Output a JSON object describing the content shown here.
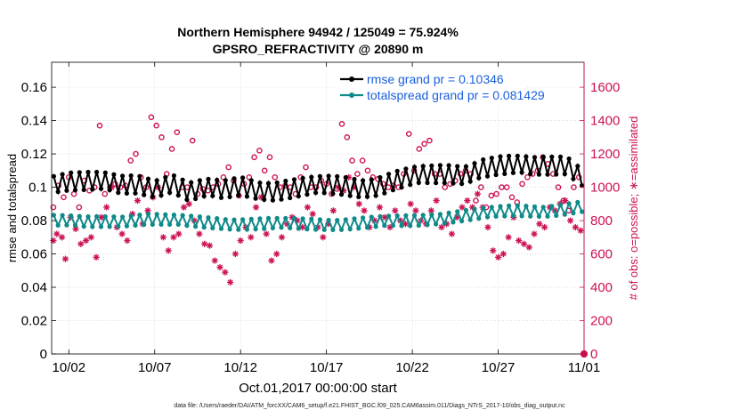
{
  "chart_data": {
    "type": "line",
    "title": "Northern Hemisphere 94942 / 125049 = 75.924%",
    "subtitle": "GPSRO_REFRACTIVITY @ 20890 m",
    "xlabel": "Oct.01,2017 00:00:00 start",
    "ylabel": "rmse and totalspread",
    "ylabel_right": "# of obs: o=possible; ∗=assimilated",
    "xlim": [
      0,
      31
    ],
    "ylim": [
      0,
      0.175
    ],
    "ylim_right": [
      0,
      1750
    ],
    "x_ticks": [
      1,
      6,
      11,
      16,
      21,
      26,
      31
    ],
    "x_tick_labels": [
      "10/02",
      "10/07",
      "10/12",
      "10/17",
      "10/22",
      "10/27",
      "11/01"
    ],
    "y_ticks": [
      0,
      0.02,
      0.04,
      0.06,
      0.08,
      0.1,
      0.12,
      0.14,
      0.16
    ],
    "y_tick_labels": [
      "0",
      "0.02",
      "0.04",
      "0.06",
      "0.08",
      "0.1",
      "0.12",
      "0.14",
      "0.16"
    ],
    "y_right_ticks": [
      0,
      200,
      400,
      600,
      800,
      1000,
      1200,
      1400,
      1600
    ],
    "y_right_tick_labels": [
      "0",
      "200",
      "400",
      "600",
      "800",
      "1000",
      "1200",
      "1400",
      "1600"
    ],
    "grid": true,
    "legend_position": "top-right",
    "series": [
      {
        "name": "rmse grand pr = 0.10346",
        "color": "#000000",
        "marker": "filled-circle",
        "axis": "left",
        "y_anchors": [
          [
            0.125,
            0.103
          ],
          [
            1,
            0.104
          ],
          [
            3,
            0.103
          ],
          [
            4,
            0.101
          ],
          [
            5,
            0.102
          ],
          [
            6,
            0.1
          ],
          [
            7,
            0.103
          ],
          [
            8,
            0.097
          ],
          [
            9,
            0.099
          ],
          [
            10,
            0.098
          ],
          [
            11,
            0.101
          ],
          [
            12,
            0.099
          ],
          [
            13,
            0.098
          ],
          [
            14,
            0.099
          ],
          [
            15,
            0.1
          ],
          [
            16,
            0.101
          ],
          [
            17,
            0.101
          ],
          [
            18,
            0.1
          ],
          [
            19,
            0.101
          ],
          [
            20,
            0.104
          ],
          [
            21,
            0.106
          ],
          [
            22,
            0.107
          ],
          [
            23,
            0.108
          ],
          [
            24,
            0.108
          ],
          [
            25,
            0.112
          ],
          [
            26,
            0.113
          ],
          [
            27,
            0.113
          ],
          [
            28,
            0.112
          ],
          [
            29,
            0.113
          ],
          [
            30,
            0.114
          ],
          [
            30.875,
            0.107
          ]
        ],
        "wiggle_amplitude": 0.006,
        "samples_per_day": 4
      },
      {
        "name": "totalspread grand pr = 0.081429",
        "color": "#0f8a8a",
        "marker": "filled-circle",
        "axis": "left",
        "y_anchors": [
          [
            0.125,
            0.08
          ],
          [
            2,
            0.079
          ],
          [
            4,
            0.08
          ],
          [
            5.5,
            0.081
          ],
          [
            7,
            0.08
          ],
          [
            9,
            0.079
          ],
          [
            11,
            0.078
          ],
          [
            13,
            0.078
          ],
          [
            15,
            0.078
          ],
          [
            17,
            0.078
          ],
          [
            19,
            0.079
          ],
          [
            21,
            0.08
          ],
          [
            23,
            0.082
          ],
          [
            25,
            0.084
          ],
          [
            27,
            0.086
          ],
          [
            29,
            0.086
          ],
          [
            30.875,
            0.088
          ]
        ],
        "wiggle_amplitude": 0.0035,
        "samples_per_day": 4
      },
      {
        "name": "obs possible",
        "color": "#cc1155",
        "marker": "open-circle",
        "axis": "right",
        "points": [
          [
            0.1,
            880
          ],
          [
            0.4,
            1010
          ],
          [
            0.7,
            940
          ],
          [
            1.0,
            1060
          ],
          [
            1.3,
            960
          ],
          [
            1.6,
            880
          ],
          [
            1.9,
            1040
          ],
          [
            2.2,
            980
          ],
          [
            2.5,
            1000
          ],
          [
            2.8,
            1370
          ],
          [
            3.1,
            960
          ],
          [
            3.4,
            1000
          ],
          [
            3.7,
            1020
          ],
          [
            4.0,
            1000
          ],
          [
            4.3,
            1010
          ],
          [
            4.6,
            1160
          ],
          [
            4.9,
            1200
          ],
          [
            5.2,
            1060
          ],
          [
            5.5,
            1000
          ],
          [
            5.8,
            1420
          ],
          [
            6.1,
            1370
          ],
          [
            6.4,
            1300
          ],
          [
            6.7,
            1080
          ],
          [
            7.0,
            1230
          ],
          [
            7.3,
            1330
          ],
          [
            7.6,
            1000
          ],
          [
            7.9,
            1000
          ],
          [
            8.2,
            1280
          ],
          [
            8.5,
            960
          ],
          [
            8.8,
            990
          ],
          [
            9.1,
            980
          ],
          [
            9.4,
            1000
          ],
          [
            9.7,
            1020
          ],
          [
            10.0,
            1060
          ],
          [
            10.3,
            1120
          ],
          [
            10.6,
            1040
          ],
          [
            10.9,
            950
          ],
          [
            11.2,
            1020
          ],
          [
            11.5,
            1060
          ],
          [
            11.8,
            1180
          ],
          [
            12.1,
            1220
          ],
          [
            12.4,
            1100
          ],
          [
            12.7,
            1180
          ],
          [
            13.0,
            1060
          ],
          [
            13.3,
            1000
          ],
          [
            13.6,
            1010
          ],
          [
            13.9,
            1000
          ],
          [
            14.2,
            960
          ],
          [
            14.5,
            1060
          ],
          [
            14.8,
            1120
          ],
          [
            15.1,
            1000
          ],
          [
            15.4,
            1000
          ],
          [
            15.7,
            1040
          ],
          [
            16.0,
            1020
          ],
          [
            16.3,
            960
          ],
          [
            16.6,
            990
          ],
          [
            16.9,
            1380
          ],
          [
            17.2,
            1300
          ],
          [
            17.5,
            1160
          ],
          [
            17.8,
            1080
          ],
          [
            18.1,
            1160
          ],
          [
            18.4,
            1100
          ],
          [
            18.7,
            1060
          ],
          [
            19.0,
            1050
          ],
          [
            19.3,
            1020
          ],
          [
            19.6,
            1000
          ],
          [
            19.9,
            1010
          ],
          [
            20.2,
            1000
          ],
          [
            20.5,
            1080
          ],
          [
            20.8,
            1320
          ],
          [
            21.1,
            1100
          ],
          [
            21.4,
            1230
          ],
          [
            21.7,
            1260
          ],
          [
            22.0,
            1280
          ],
          [
            22.3,
            1080
          ],
          [
            22.6,
            1080
          ],
          [
            22.9,
            1000
          ],
          [
            23.2,
            1020
          ],
          [
            23.5,
            1040
          ],
          [
            23.8,
            1080
          ],
          [
            24.1,
            1100
          ],
          [
            24.4,
            1080
          ],
          [
            24.7,
            920
          ],
          [
            25.0,
            1000
          ],
          [
            25.3,
            880
          ],
          [
            25.6,
            950
          ],
          [
            25.9,
            960
          ],
          [
            26.2,
            1000
          ],
          [
            26.5,
            1000
          ],
          [
            26.8,
            940
          ],
          [
            27.1,
            910
          ],
          [
            27.4,
            1020
          ],
          [
            27.7,
            1060
          ],
          [
            28.0,
            1080
          ],
          [
            28.3,
            1100
          ],
          [
            28.6,
            1180
          ],
          [
            28.9,
            1140
          ],
          [
            29.2,
            1080
          ],
          [
            29.5,
            1000
          ],
          [
            29.8,
            920
          ],
          [
            30.1,
            860
          ],
          [
            30.4,
            1000
          ],
          [
            30.7,
            1060
          ],
          [
            31.0,
            0
          ]
        ]
      },
      {
        "name": "obs assimilated",
        "color": "#cc1155",
        "marker": "asterisk",
        "axis": "right",
        "points": [
          [
            0.1,
            680
          ],
          [
            0.3,
            720
          ],
          [
            0.6,
            700
          ],
          [
            0.8,
            570
          ],
          [
            1.1,
            820
          ],
          [
            1.4,
            750
          ],
          [
            1.7,
            660
          ],
          [
            2.0,
            680
          ],
          [
            2.3,
            700
          ],
          [
            2.6,
            580
          ],
          [
            2.9,
            820
          ],
          [
            3.2,
            880
          ],
          [
            3.5,
            1000
          ],
          [
            3.8,
            760
          ],
          [
            4.1,
            720
          ],
          [
            4.4,
            680
          ],
          [
            4.7,
            840
          ],
          [
            5.0,
            920
          ],
          [
            5.3,
            780
          ],
          [
            5.6,
            860
          ],
          [
            5.9,
            940
          ],
          [
            6.2,
            1000
          ],
          [
            6.5,
            700
          ],
          [
            6.8,
            620
          ],
          [
            7.1,
            700
          ],
          [
            7.4,
            720
          ],
          [
            7.7,
            880
          ],
          [
            8.0,
            900
          ],
          [
            8.3,
            800
          ],
          [
            8.6,
            720
          ],
          [
            8.9,
            660
          ],
          [
            9.2,
            650
          ],
          [
            9.5,
            560
          ],
          [
            9.8,
            520
          ],
          [
            10.1,
            490
          ],
          [
            10.4,
            430
          ],
          [
            10.7,
            600
          ],
          [
            11.0,
            680
          ],
          [
            11.3,
            760
          ],
          [
            11.6,
            700
          ],
          [
            11.9,
            880
          ],
          [
            12.2,
            940
          ],
          [
            12.5,
            720
          ],
          [
            12.8,
            560
          ],
          [
            13.1,
            600
          ],
          [
            13.4,
            700
          ],
          [
            13.7,
            780
          ],
          [
            14.0,
            820
          ],
          [
            14.3,
            800
          ],
          [
            14.6,
            760
          ],
          [
            14.9,
            880
          ],
          [
            15.2,
            840
          ],
          [
            15.5,
            760
          ],
          [
            15.8,
            700
          ],
          [
            16.1,
            780
          ],
          [
            16.4,
            860
          ],
          [
            16.7,
            1000
          ],
          [
            17.0,
            980
          ],
          [
            17.3,
            1060
          ],
          [
            17.6,
            1000
          ],
          [
            17.9,
            900
          ],
          [
            18.2,
            860
          ],
          [
            18.5,
            760
          ],
          [
            18.8,
            800
          ],
          [
            19.1,
            880
          ],
          [
            19.4,
            820
          ],
          [
            19.7,
            760
          ],
          [
            20.0,
            860
          ],
          [
            20.3,
            800
          ],
          [
            20.6,
            780
          ],
          [
            20.9,
            900
          ],
          [
            21.2,
            860
          ],
          [
            21.5,
            800
          ],
          [
            21.8,
            780
          ],
          [
            22.1,
            860
          ],
          [
            22.4,
            920
          ],
          [
            22.7,
            760
          ],
          [
            23.0,
            780
          ],
          [
            23.3,
            720
          ],
          [
            23.6,
            820
          ],
          [
            23.9,
            880
          ],
          [
            24.2,
            920
          ],
          [
            24.5,
            880
          ],
          [
            24.8,
            960
          ],
          [
            25.1,
            880
          ],
          [
            25.4,
            760
          ],
          [
            25.7,
            620
          ],
          [
            26.0,
            580
          ],
          [
            26.3,
            600
          ],
          [
            26.6,
            700
          ],
          [
            26.9,
            820
          ],
          [
            27.2,
            680
          ],
          [
            27.5,
            660
          ],
          [
            27.8,
            640
          ],
          [
            28.1,
            720
          ],
          [
            28.4,
            780
          ],
          [
            28.7,
            760
          ],
          [
            29.0,
            880
          ],
          [
            29.3,
            860
          ],
          [
            29.6,
            900
          ],
          [
            29.9,
            920
          ],
          [
            30.2,
            800
          ],
          [
            30.5,
            760
          ],
          [
            30.8,
            740
          ],
          [
            31.0,
            0
          ]
        ]
      }
    ]
  },
  "footer_text": "data file: /Users/raeder/DAI/ATM_forcXX/CAM6_setup/f.e21.FHIST_BGC.f09_025.CAM6assim.011/Diags_NTrS_2017-10/obs_diag_output.nc"
}
